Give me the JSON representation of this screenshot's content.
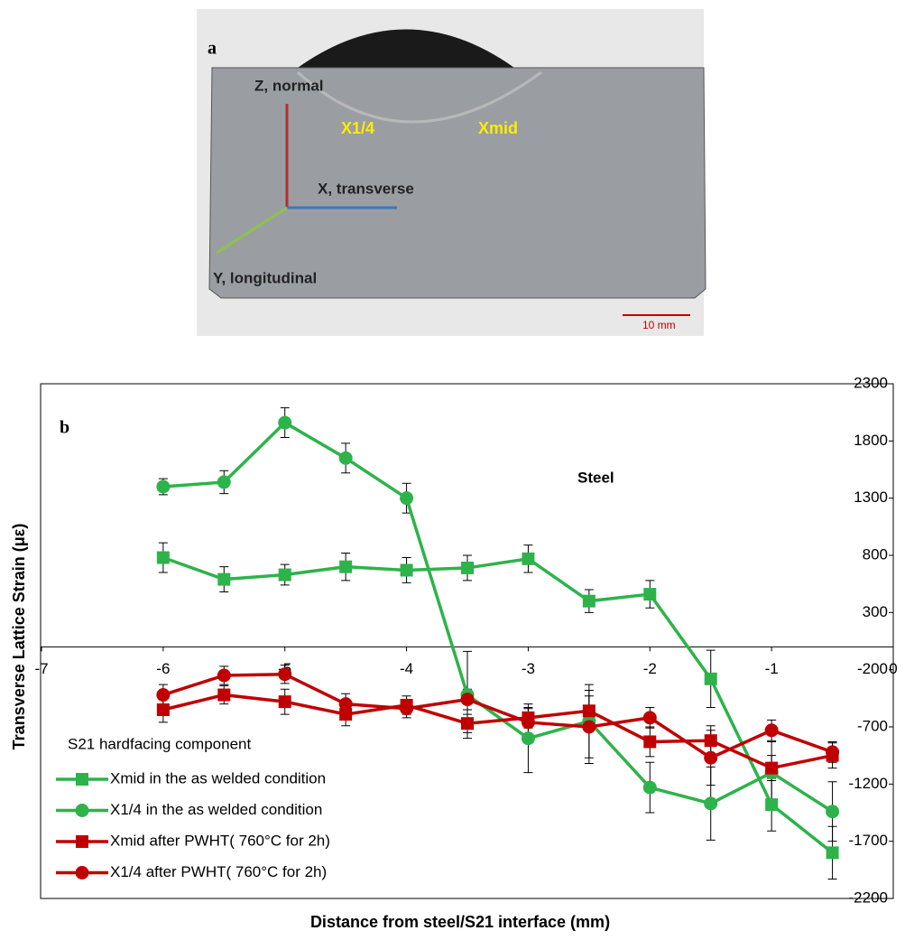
{
  "photo": {
    "panel_label": "a",
    "labels": [
      "Z, normal",
      "X1/4",
      "Xmid",
      "X, transverse",
      "Y, longitudinal",
      "10 mm"
    ]
  },
  "chart_data": {
    "type": "line",
    "panel_label": "b",
    "annotations": [
      "Steel",
      "S21 hardfacing component"
    ],
    "x_label": "Distance from steel/S21 interface (mm)",
    "y_label": "Transverse  Lattice Strain (με)",
    "xlim": [
      -7,
      0
    ],
    "xticks": [
      -7,
      -6,
      -5,
      -4,
      -3,
      -2,
      -1,
      0
    ],
    "ylim": [
      -2200,
      2300
    ],
    "yticks": [
      -2200,
      -1700,
      -1200,
      -700,
      -200,
      300,
      800,
      1300,
      1800,
      2300
    ],
    "x": [
      -6,
      -5.5,
      -5,
      -4.5,
      -4,
      -3.5,
      -3,
      -2.5,
      -2,
      -1.5,
      -1,
      -0.5
    ],
    "series": [
      {
        "name": "Xmid in the as welded condition",
        "color": "#2db34a",
        "marker": "square",
        "values": [
          780,
          590,
          630,
          700,
          670,
          690,
          770,
          400,
          460,
          -280,
          -1380,
          -1800
        ],
        "errors": [
          130,
          110,
          90,
          120,
          110,
          110,
          120,
          100,
          120,
          250,
          230,
          230
        ]
      },
      {
        "name": "X1/4 in the as welded condition",
        "color": "#2db34a",
        "marker": "circle",
        "values": [
          1400,
          1440,
          1960,
          1650,
          1300,
          -420,
          -800,
          -650,
          -1230,
          -1370,
          -1100,
          -1440
        ],
        "errors": [
          70,
          100,
          130,
          130,
          130,
          380,
          300,
          320,
          220,
          320,
          270,
          260
        ]
      },
      {
        "name": "Xmid after PWHT( 760°C for 2h)",
        "color": "#c00000",
        "marker": "square",
        "values": [
          -550,
          -420,
          -480,
          -590,
          -510,
          -670,
          -620,
          -560,
          -830,
          -820,
          -1060,
          -950
        ],
        "errors": [
          110,
          80,
          110,
          100,
          80,
          80,
          90,
          130,
          130,
          130,
          110,
          110
        ]
      },
      {
        "name": "X1/4 after PWHT( 760°C for 2h)",
        "color": "#c00000",
        "marker": "circle",
        "values": [
          -420,
          -250,
          -240,
          -500,
          -540,
          -460,
          -660,
          -700,
          -620,
          -970,
          -730,
          -920
        ],
        "errors": [
          90,
          80,
          80,
          90,
          80,
          90,
          120,
          320,
          90,
          240,
          90,
          90
        ]
      }
    ]
  }
}
